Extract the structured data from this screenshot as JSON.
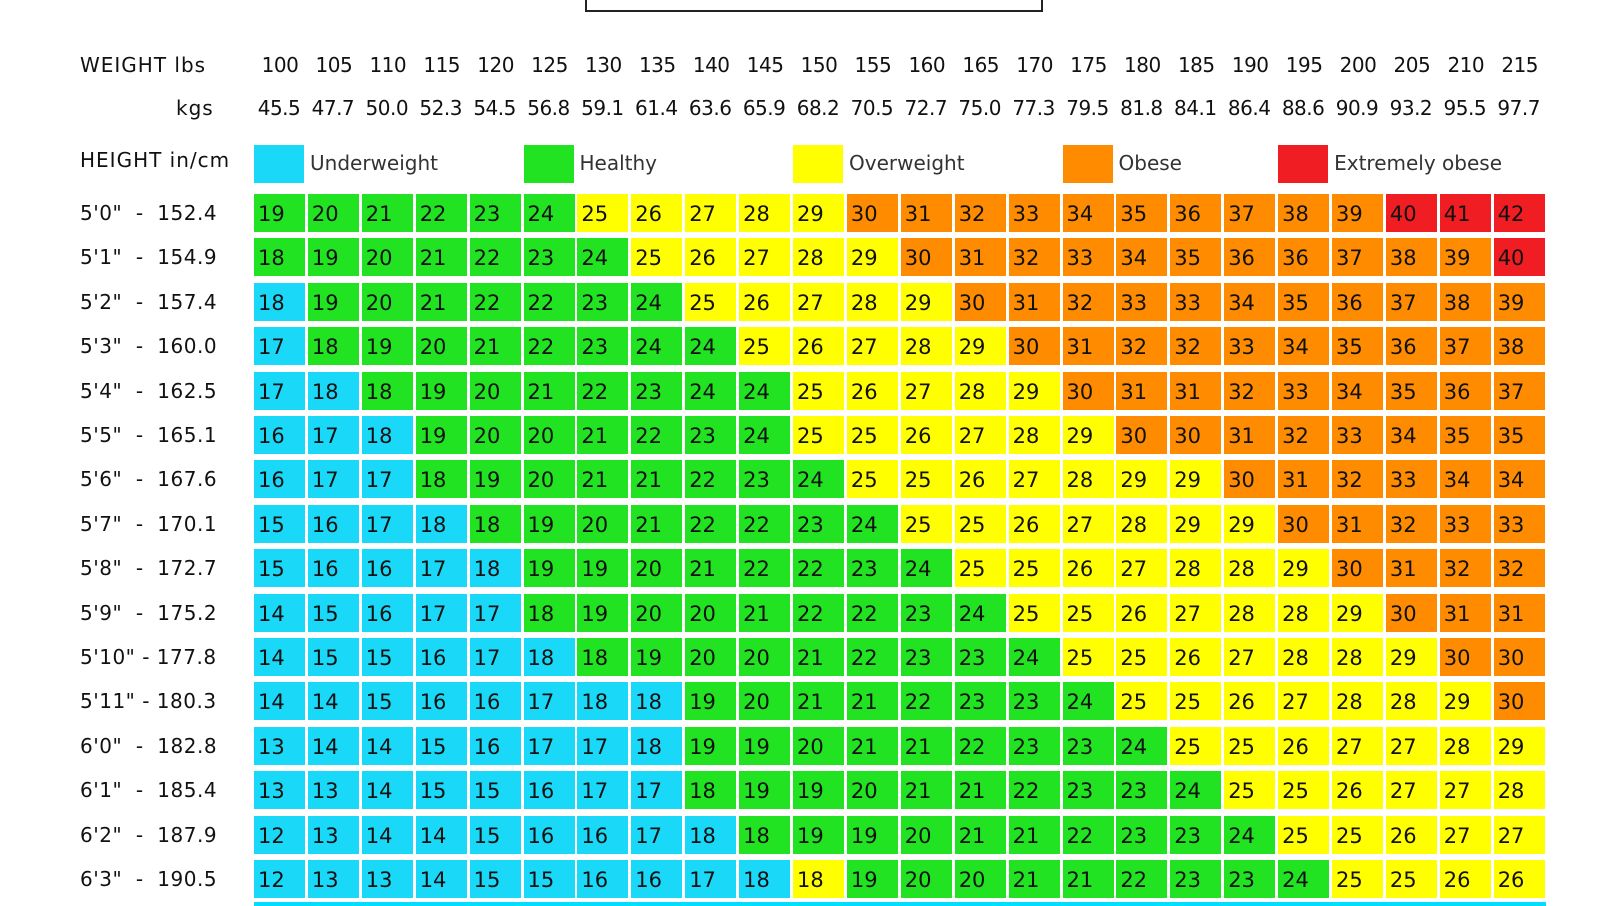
{
  "chart_data": {
    "type": "heatmap",
    "weight_label": "WEIGHT lbs",
    "kgs_label": "kgs",
    "height_label": "HEIGHT in/cm",
    "weights_lbs": [
      "100",
      "105",
      "110",
      "115",
      "120",
      "125",
      "130",
      "135",
      "140",
      "145",
      "150",
      "155",
      "160",
      "165",
      "170",
      "175",
      "180",
      "185",
      "190",
      "195",
      "200",
      "205",
      "210",
      "215"
    ],
    "weights_kgs": [
      "45.5",
      "47.7",
      "50.0",
      "52.3",
      "54.5",
      "56.8",
      "59.1",
      "61.4",
      "63.6",
      "65.9",
      "68.2",
      "70.5",
      "72.7",
      "75.0",
      "77.3",
      "79.5",
      "81.8",
      "84.1",
      "86.4",
      "88.6",
      "90.9",
      "93.2",
      "95.5",
      "97.7"
    ],
    "categories": [
      {
        "key": "under",
        "label": "Underweight",
        "color": "#1ad8f7"
      },
      {
        "key": "healthy",
        "label": "Healthy",
        "color": "#21e321"
      },
      {
        "key": "over",
        "label": "Overweight",
        "color": "#ffff00"
      },
      {
        "key": "obese",
        "label": "Obese",
        "color": "#ff8c00"
      },
      {
        "key": "extreme",
        "label": "Extremely obese",
        "color": "#f01d22"
      }
    ],
    "rows": [
      {
        "label": "5'0\"  -  152.4",
        "values": [
          19,
          20,
          21,
          22,
          23,
          24,
          25,
          26,
          27,
          28,
          29,
          30,
          31,
          32,
          33,
          34,
          35,
          36,
          37,
          38,
          39,
          40,
          41,
          42
        ],
        "cats": "HHHHHHOOOOOBBBBBBBBBBEEE"
      },
      {
        "label": "5'1\"  -  154.9",
        "values": [
          18,
          19,
          20,
          21,
          22,
          23,
          24,
          25,
          26,
          27,
          28,
          29,
          30,
          31,
          32,
          33,
          34,
          35,
          36,
          36,
          37,
          38,
          39,
          40
        ],
        "cats": "HHHHHHHOOOOOBBBBBBBBBBBE"
      },
      {
        "label": "5'2\"  -  157.4",
        "values": [
          18,
          19,
          20,
          21,
          22,
          22,
          23,
          24,
          25,
          26,
          27,
          28,
          29,
          30,
          31,
          32,
          33,
          33,
          34,
          35,
          36,
          37,
          38,
          39
        ],
        "cats": "UHHHHHHHOOOOOBBBBBBBBBBB"
      },
      {
        "label": "5'3\"  -  160.0",
        "values": [
          17,
          18,
          19,
          20,
          21,
          22,
          23,
          24,
          24,
          25,
          26,
          27,
          28,
          29,
          30,
          31,
          32,
          32,
          33,
          34,
          35,
          36,
          37,
          38
        ],
        "cats": "UHHHHHHHHOOOOOBBBBBBBBBB"
      },
      {
        "label": "5'4\"  -  162.5",
        "values": [
          17,
          18,
          18,
          19,
          20,
          21,
          22,
          23,
          24,
          24,
          25,
          26,
          27,
          28,
          29,
          30,
          31,
          31,
          32,
          33,
          34,
          35,
          36,
          37
        ],
        "cats": "UUHHHHHHHHOOOOOBBBBBBBBB"
      },
      {
        "label": "5'5\"  -  165.1",
        "values": [
          16,
          17,
          18,
          19,
          20,
          20,
          21,
          22,
          23,
          24,
          25,
          25,
          26,
          27,
          28,
          29,
          30,
          30,
          31,
          32,
          33,
          34,
          35,
          35
        ],
        "cats": "UUUHHHHHHHOOOOOOBBBBBBBB"
      },
      {
        "label": "5'6\"  -  167.6",
        "values": [
          16,
          17,
          17,
          18,
          19,
          20,
          21,
          21,
          22,
          23,
          24,
          25,
          25,
          26,
          27,
          28,
          29,
          29,
          30,
          31,
          32,
          33,
          34,
          34
        ],
        "cats": "UUUHHHHHHHHOOOOOOOBBBBBB"
      },
      {
        "label": "5'7\"  -  170.1",
        "values": [
          15,
          16,
          17,
          18,
          18,
          19,
          20,
          21,
          22,
          22,
          23,
          24,
          25,
          25,
          26,
          27,
          28,
          29,
          29,
          30,
          31,
          32,
          33,
          33
        ],
        "cats": "UUUUHHHHHHHHOOOOOOOBBBBB"
      },
      {
        "label": "5'8\"  -  172.7",
        "values": [
          15,
          16,
          16,
          17,
          18,
          19,
          19,
          20,
          21,
          22,
          22,
          23,
          24,
          25,
          25,
          26,
          27,
          28,
          28,
          29,
          30,
          31,
          32,
          32
        ],
        "cats": "UUUUUHHHHHHHHOOOOOOOBBBB"
      },
      {
        "label": "5'9\"  -  175.2",
        "values": [
          14,
          15,
          16,
          17,
          17,
          18,
          19,
          20,
          20,
          21,
          22,
          22,
          23,
          24,
          25,
          25,
          26,
          27,
          28,
          28,
          29,
          30,
          31,
          31
        ],
        "cats": "UUUUUHHHHHHHHHOOOOOOOBBB"
      },
      {
        "label": "5'10\" - 177.8",
        "values": [
          14,
          15,
          15,
          16,
          17,
          18,
          18,
          19,
          20,
          20,
          21,
          22,
          23,
          23,
          24,
          25,
          25,
          26,
          27,
          28,
          28,
          29,
          30,
          30
        ],
        "cats": "UUUUUUHHHHHHHHHOOOOOOOBB"
      },
      {
        "label": "5'11\" - 180.3",
        "values": [
          14,
          14,
          15,
          16,
          16,
          17,
          18,
          18,
          19,
          20,
          21,
          21,
          22,
          23,
          23,
          24,
          25,
          25,
          26,
          27,
          28,
          28,
          29,
          30
        ],
        "cats": "UUUUUUUUHHHHHHHHOOOOOOOB"
      },
      {
        "label": "6'0\"  -  182.8",
        "values": [
          13,
          14,
          14,
          15,
          16,
          17,
          17,
          18,
          19,
          19,
          20,
          21,
          21,
          22,
          23,
          23,
          24,
          25,
          25,
          26,
          27,
          27,
          28,
          29
        ],
        "cats": "UUUUUUUUHHHHHHHHHOOOOOOO"
      },
      {
        "label": "6'1\"  -  185.4",
        "values": [
          13,
          13,
          14,
          15,
          15,
          16,
          17,
          17,
          18,
          19,
          19,
          20,
          21,
          21,
          22,
          23,
          23,
          24,
          25,
          25,
          26,
          27,
          27,
          28
        ],
        "cats": "UUUUUUUUHHHHHHHHHHOOOOOO"
      },
      {
        "label": "6'2\"  -  187.9",
        "values": [
          12,
          13,
          14,
          14,
          15,
          16,
          16,
          17,
          18,
          18,
          19,
          19,
          20,
          21,
          21,
          22,
          23,
          23,
          24,
          25,
          25,
          26,
          27,
          27
        ],
        "cats": "UUUUUUUUUHHHHHHHHHHOOOOO"
      },
      {
        "label": "6'3\"  -  190.5",
        "values": [
          12,
          13,
          13,
          14,
          15,
          15,
          16,
          16,
          17,
          18,
          18,
          19,
          20,
          20,
          21,
          21,
          22,
          23,
          23,
          24,
          25,
          25,
          26,
          26
        ],
        "cats": "UUUUUUUUUUOHHHHHHHHHOOOO"
      }
    ]
  }
}
